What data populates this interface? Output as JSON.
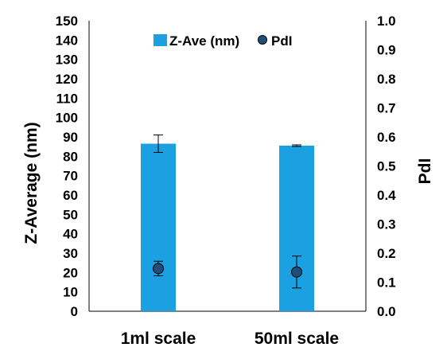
{
  "chart_data": {
    "type": "bar",
    "categories": [
      "1ml scale",
      "50ml scale"
    ],
    "series": [
      {
        "name": "Z-Ave (nm)",
        "kind": "bar",
        "axis": "left",
        "values": [
          86.5,
          85.5
        ],
        "error": [
          4.5,
          0.4
        ],
        "color": "#1ba1e2"
      },
      {
        "name": "PdI",
        "kind": "marker",
        "axis": "right",
        "values": [
          0.147,
          0.135
        ],
        "error": [
          0.025,
          0.055
        ],
        "color": "#1f4e79"
      }
    ],
    "ylabel": "Z-Average (nm)",
    "y2label": "PdI",
    "ylim": [
      0,
      150
    ],
    "y2lim": [
      0,
      1.0
    ],
    "yticks": [
      "0",
      "10",
      "20",
      "30",
      "40",
      "50",
      "60",
      "70",
      "80",
      "90",
      "100",
      "110",
      "120",
      "130",
      "140",
      "150"
    ],
    "y2ticks": [
      "0.0",
      "0.1",
      "0.2",
      "0.3",
      "0.4",
      "0.5",
      "0.6",
      "0.7",
      "0.8",
      "0.9",
      "1.0"
    ],
    "grid": false,
    "legend": "top-center"
  }
}
